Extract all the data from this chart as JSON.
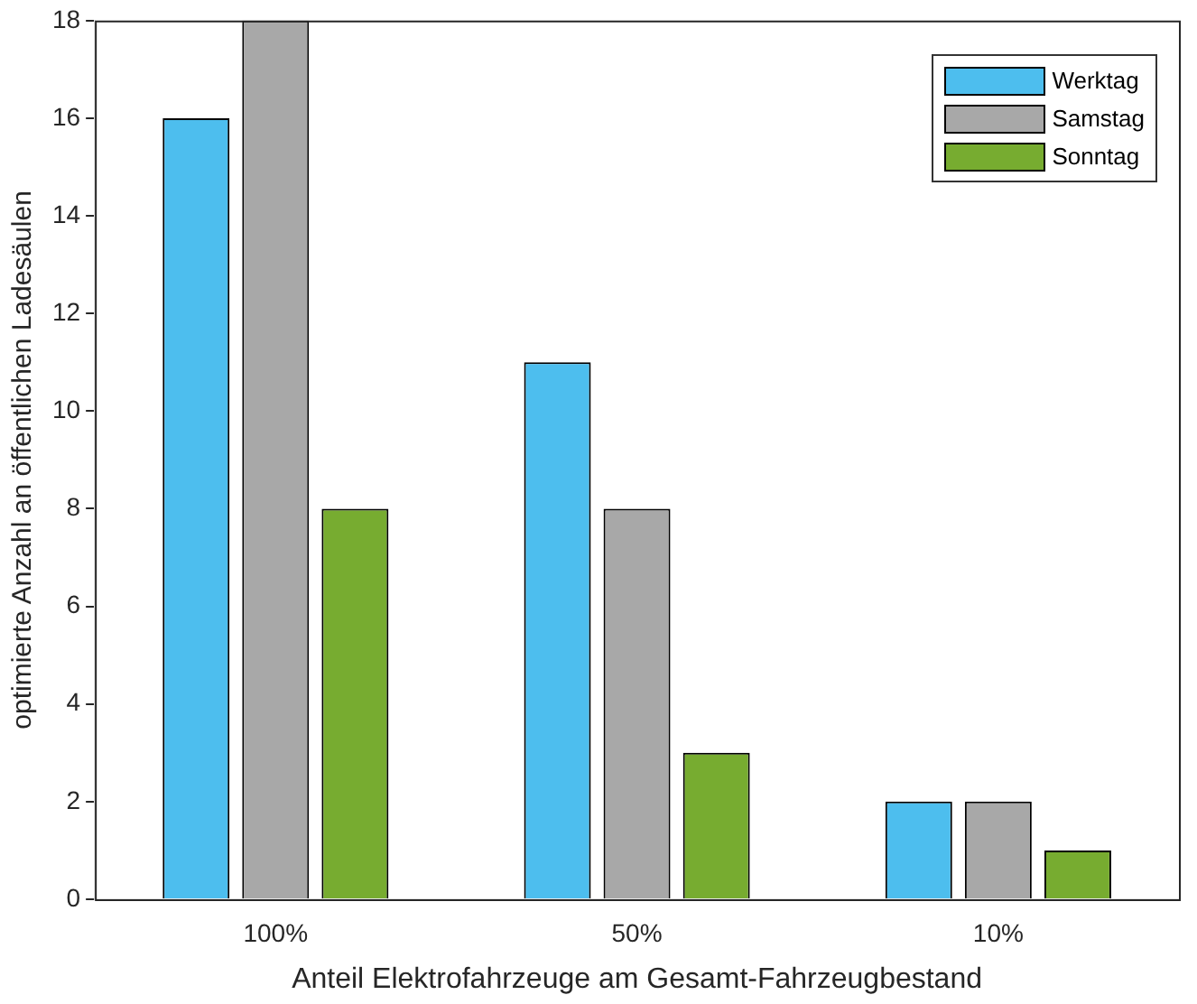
{
  "chart_data": {
    "type": "bar",
    "xlabel": "Anteil Elektrofahrzeuge am Gesamt-Fahrzeugbestand",
    "ylabel": "optimierte Anzahl an öffentlichen Ladesäulen",
    "categories": [
      "100%",
      "50%",
      "10%"
    ],
    "series": [
      {
        "name": "Werktag",
        "color": "#4dbeee",
        "values": [
          16,
          11,
          2
        ]
      },
      {
        "name": "Samstag",
        "color": "#a8a8a8",
        "values": [
          18,
          8,
          2
        ]
      },
      {
        "name": "Sonntag",
        "color": "#77ac30",
        "values": [
          8,
          3,
          1
        ]
      }
    ],
    "ylim": [
      0,
      18
    ],
    "yticks": [
      0,
      2,
      4,
      6,
      8,
      10,
      12,
      14,
      16,
      18
    ],
    "legend": "top right"
  }
}
